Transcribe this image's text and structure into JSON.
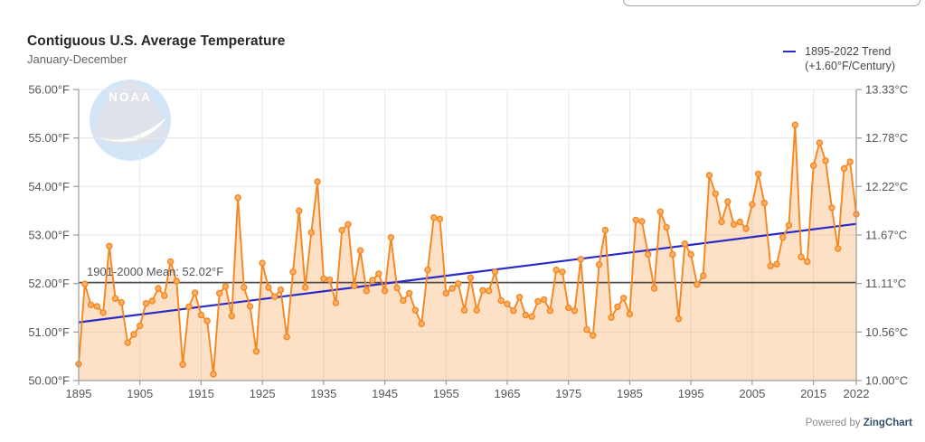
{
  "header": {
    "title": "Contiguous U.S. Average Temperature",
    "subtitle": "January-December"
  },
  "legend": {
    "line1": "1895-2022 Trend",
    "line2": "(+1.60°F/Century)"
  },
  "powered_by": {
    "prefix": "Powered by ",
    "brand": "ZingChart"
  },
  "watermark": {
    "text": "NOAA"
  },
  "chart_data": {
    "type": "line",
    "title": "Contiguous U.S. Average Temperature",
    "subtitle": "January-December",
    "x": {
      "start_year": 1895,
      "end_year": 2022,
      "tick_years": [
        1895,
        1905,
        1915,
        1925,
        1935,
        1945,
        1955,
        1965,
        1975,
        1985,
        1995,
        2005,
        2015,
        2022
      ]
    },
    "y_left": {
      "unit": "°F",
      "min": 50,
      "max": 56,
      "tick_values": [
        56,
        55,
        54,
        53,
        52,
        51,
        50
      ],
      "tick_labels": [
        "56.00°F",
        "55.00°F",
        "54.00°F",
        "53.00°F",
        "52.00°F",
        "51.00°F",
        "50.00°F"
      ]
    },
    "y_right": {
      "unit": "°C",
      "tick_labels": [
        "13.33°C",
        "12.78°C",
        "12.22°C",
        "11.67°C",
        "11.11°C",
        "10.56°C",
        "10.00°C"
      ]
    },
    "series": [
      {
        "name": "Annual average temperature (°F)",
        "start_year": 1895,
        "values": [
          50.34,
          51.99,
          51.56,
          51.53,
          51.4,
          52.77,
          51.69,
          51.61,
          50.78,
          50.95,
          51.13,
          51.59,
          51.64,
          51.9,
          51.75,
          52.45,
          52.05,
          50.33,
          51.52,
          51.81,
          51.35,
          51.23,
          50.13,
          51.8,
          51.94,
          51.33,
          53.77,
          51.92,
          51.53,
          50.6,
          52.42,
          51.92,
          51.73,
          51.87,
          50.9,
          52.24,
          53.5,
          51.92,
          53.05,
          54.1,
          52.1,
          52.08,
          51.6,
          53.1,
          53.22,
          51.95,
          52.68,
          51.85,
          52.07,
          52.2,
          51.85,
          52.95,
          51.91,
          51.65,
          51.8,
          51.45,
          51.17,
          52.28,
          53.36,
          53.33,
          51.8,
          51.9,
          52.0,
          51.45,
          52.12,
          51.45,
          51.86,
          51.85,
          52.24,
          51.65,
          51.58,
          51.44,
          51.72,
          51.35,
          51.32,
          51.63,
          51.67,
          51.44,
          52.28,
          52.24,
          51.5,
          51.44,
          52.5,
          51.05,
          50.93,
          52.39,
          53.1,
          51.3,
          51.52,
          51.7,
          51.37,
          53.31,
          53.28,
          52.6,
          51.9,
          53.48,
          53.16,
          52.6,
          51.27,
          52.82,
          52.6,
          51.98,
          52.16,
          54.23,
          53.85,
          53.27,
          53.69,
          53.22,
          53.27,
          53.13,
          53.63,
          54.26,
          53.66,
          52.36,
          52.4,
          52.95,
          53.2,
          55.27,
          52.55,
          52.45,
          54.43,
          54.9,
          54.53,
          53.56,
          52.72,
          54.37,
          54.51,
          53.43
        ]
      }
    ],
    "trend": {
      "label": "1895-2022 Trend (+1.60°F/Century)",
      "rate_F_per_century": 1.6,
      "start_F": 51.2,
      "end_F": 53.23
    },
    "mean": {
      "label": "1901-2000 Mean: 52.02°F",
      "value_F": 52.02
    },
    "colors": {
      "series_line": "#f6861f",
      "series_marker_fill": "#fbb168",
      "series_area": "rgba(246,134,31,0.25)",
      "trend_line": "#2a2ac8",
      "mean_line": "#4a4a4a",
      "grid": "#e8e8e8",
      "axis": "#9b9b9b",
      "tick_text": "#55565a",
      "watermark_blue": "#d2e6f7",
      "watermark_gray": "#dfe2ea"
    }
  }
}
